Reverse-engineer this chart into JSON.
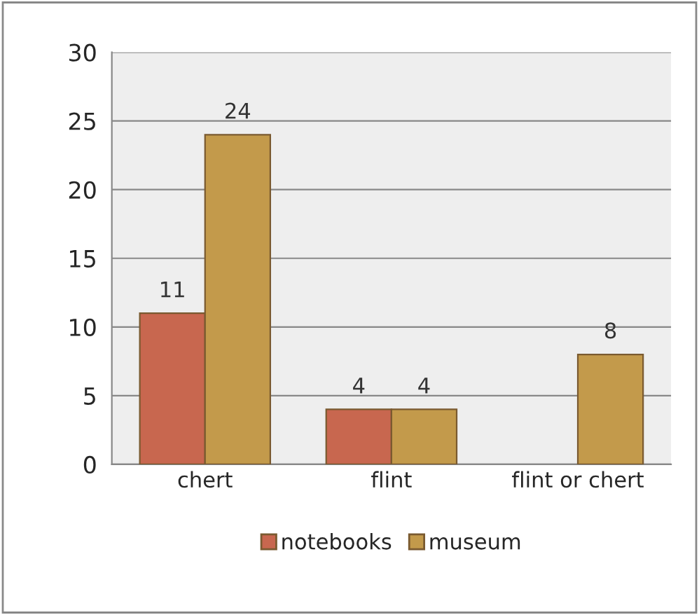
{
  "chart_data": {
    "type": "bar",
    "categories": [
      "chert",
      "flint",
      "flint or chert"
    ],
    "series": [
      {
        "name": "notebooks",
        "color": "#c8674f",
        "values": [
          11,
          4,
          null
        ]
      },
      {
        "name": "museum",
        "color": "#c39a4b",
        "values": [
          24,
          4,
          8
        ]
      }
    ],
    "ylim": [
      0,
      30
    ],
    "yticks": [
      0,
      5,
      10,
      15,
      20,
      25,
      30
    ],
    "grid": "y",
    "legend": "bottom",
    "data_labels": true
  }
}
